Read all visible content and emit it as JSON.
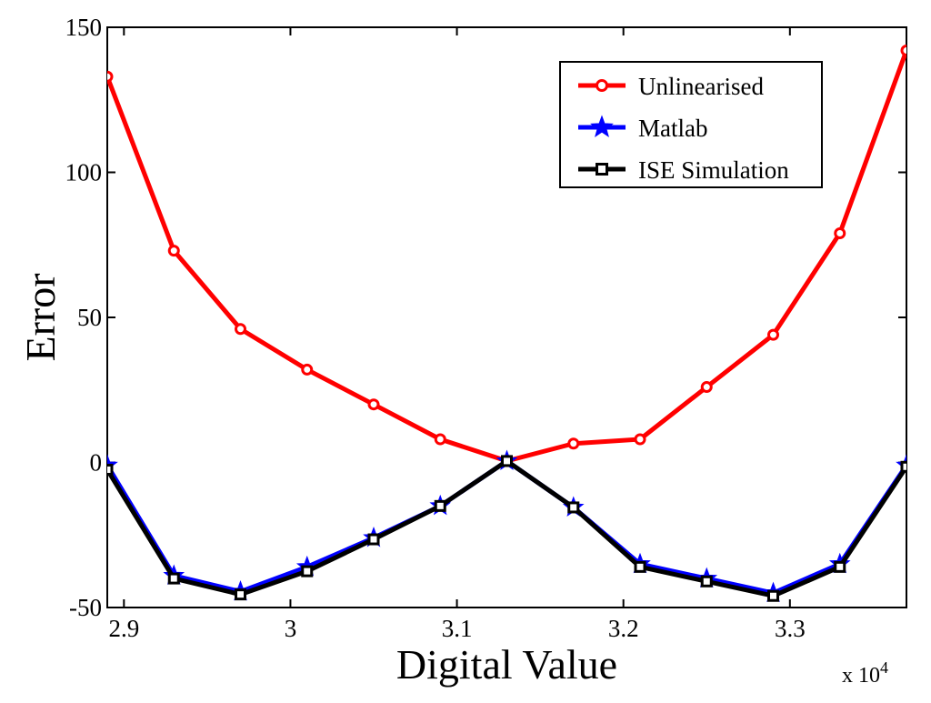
{
  "chart_data": {
    "type": "line",
    "title": "",
    "xlabel": "Digital Value",
    "ylabel": "Error",
    "x_multiplier_label": "x 10",
    "x_multiplier_exponent": "4",
    "xlim": [
      2.89,
      3.37
    ],
    "ylim": [
      -50,
      150
    ],
    "xticks": [
      2.9,
      3.0,
      3.1,
      3.2,
      3.3
    ],
    "xtick_labels": [
      "2.9",
      "3",
      "3.1",
      "3.2",
      "3.3"
    ],
    "yticks": [
      -50,
      0,
      50,
      100,
      150
    ],
    "ytick_labels": [
      "-50",
      "0",
      "50",
      "100",
      "150"
    ],
    "grid": false,
    "legend_position": "top-right",
    "x": [
      2.89,
      2.93,
      2.97,
      3.01,
      3.05,
      3.09,
      3.13,
      3.17,
      3.21,
      3.25,
      3.29,
      3.33,
      3.37
    ],
    "series": [
      {
        "name": "Unlinearised",
        "color": "#ff0000",
        "marker": "circle",
        "values": [
          133,
          73,
          46,
          32,
          20,
          8,
          0.5,
          6.5,
          8,
          26,
          44,
          79,
          142
        ]
      },
      {
        "name": "Matlab",
        "color": "#0000ff",
        "marker": "star",
        "values": [
          -1,
          -39,
          -44.5,
          -36,
          -26,
          -15,
          0.5,
          -15.5,
          -35,
          -40,
          -45,
          -35,
          -1
        ]
      },
      {
        "name": "ISE Simulation",
        "color": "#000000",
        "marker": "square",
        "values": [
          -2.5,
          -40,
          -45.5,
          -37.5,
          -26.5,
          -15,
          0.5,
          -15.5,
          -36,
          -41,
          -46,
          -36,
          -1.5
        ]
      }
    ]
  }
}
